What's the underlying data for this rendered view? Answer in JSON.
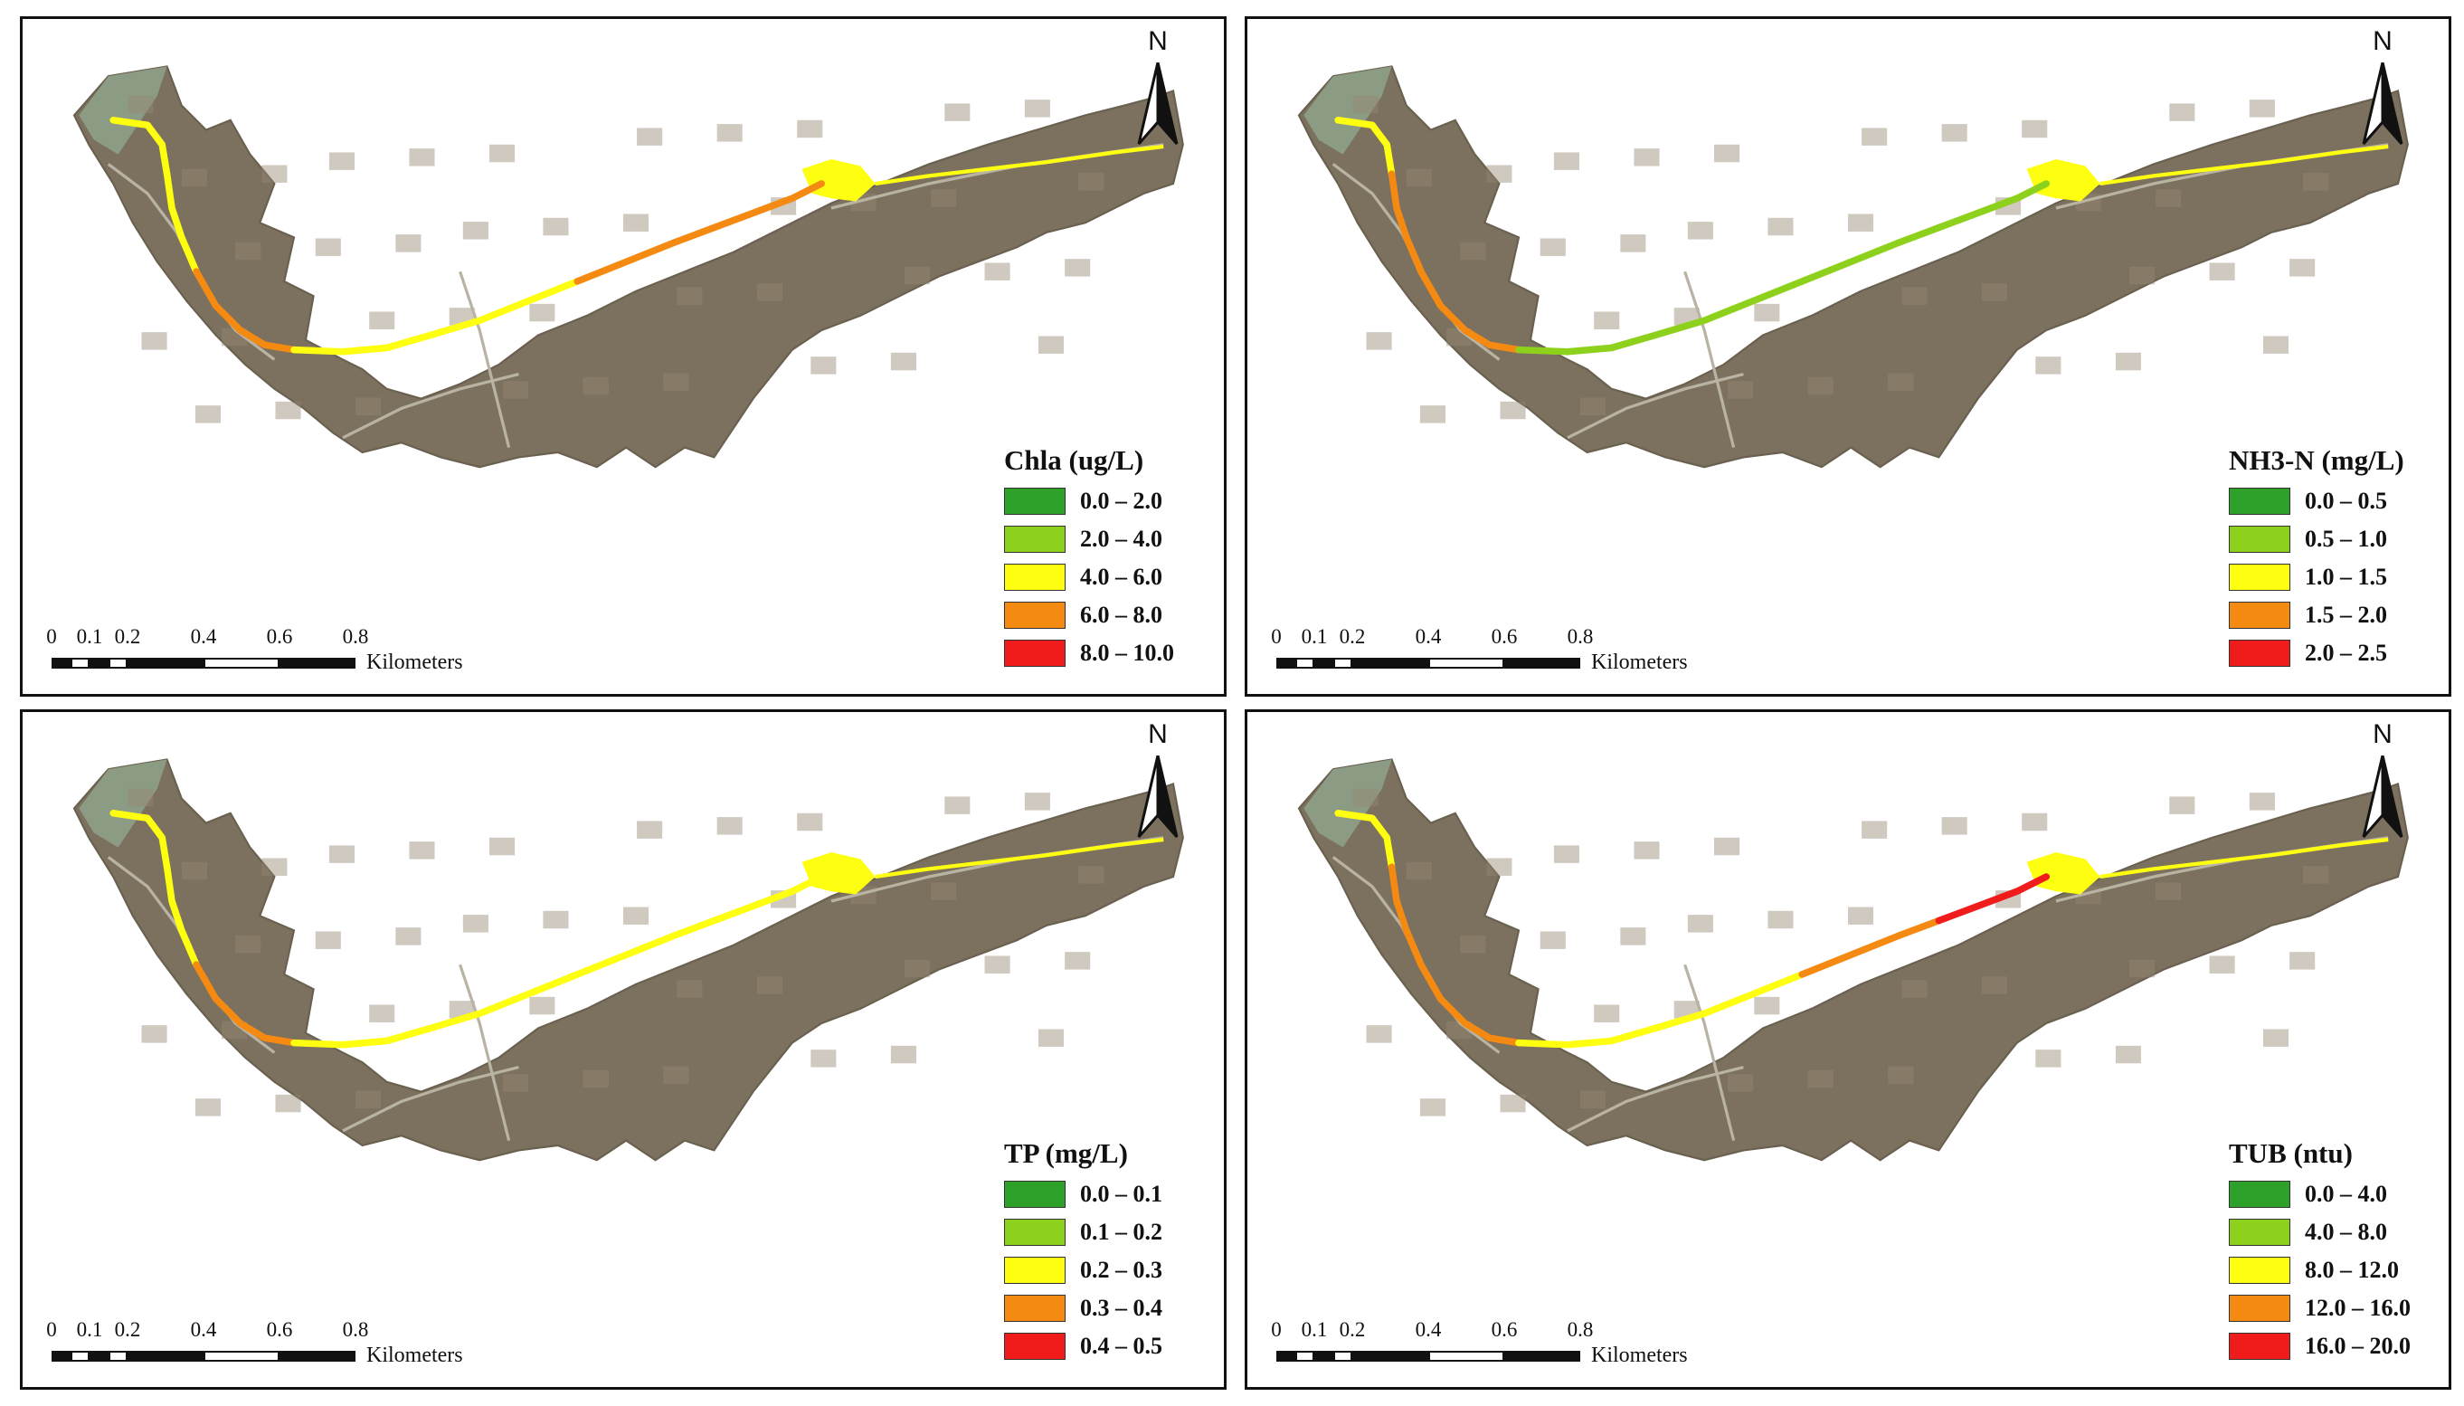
{
  "colors": {
    "land_fill": "#7c715f",
    "land_texture": "#958873",
    "lake_fill": "#8c9b84",
    "road": "#b9b3a3",
    "class_1": "#2ea12a",
    "class_2": "#8ed11c",
    "class_3": "#fefe11",
    "class_4": "#f58a12",
    "class_5": "#f01c1c"
  },
  "panels": [
    {
      "north_label": "N",
      "legend_title": "Chla (ug/L)",
      "classes": [
        "0.0 – 2.0",
        "2.0 – 4.0",
        "4.0 – 6.0",
        "6.0 – 8.0",
        "8.0 – 10.0"
      ],
      "scale_ticks": [
        "0",
        "0.1",
        "0.2",
        "0.4",
        "0.6",
        "0.8"
      ],
      "scale_units": "Kilometers"
    },
    {
      "north_label": "N",
      "legend_title": "NH3-N (mg/L)",
      "classes": [
        "0.0 – 0.5",
        "0.5 – 1.0",
        "1.0 – 1.5",
        "1.5 – 2.0",
        "2.0 – 2.5"
      ],
      "scale_ticks": [
        "0",
        "0.1",
        "0.2",
        "0.4",
        "0.6",
        "0.8"
      ],
      "scale_units": "Kilometers"
    },
    {
      "north_label": "N",
      "legend_title": "TP (mg/L)",
      "classes": [
        "0.0 – 0.1",
        "0.1 – 0.2",
        "0.2 – 0.3",
        "0.3 – 0.4",
        "0.4 – 0.5"
      ],
      "scale_ticks": [
        "0",
        "0.1",
        "0.2",
        "0.4",
        "0.6",
        "0.8"
      ],
      "scale_units": "Kilometers"
    },
    {
      "north_label": "N",
      "legend_title": "TUB (ntu)",
      "classes": [
        "0.0 – 4.0",
        "4.0 – 8.0",
        "8.0 – 12.0",
        "12.0 – 16.0",
        "16.0 – 20.0"
      ],
      "scale_ticks": [
        "0",
        "0.1",
        "0.2",
        "0.4",
        "0.6",
        "0.8"
      ],
      "scale_units": "Kilometers"
    }
  ]
}
